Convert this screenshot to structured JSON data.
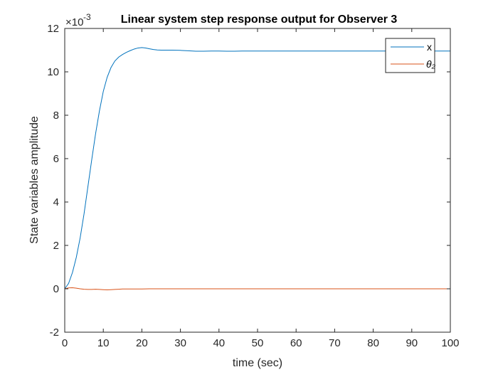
{
  "chart_data": {
    "type": "line",
    "title": "Linear system step response output for Observer 3",
    "xlabel": "time (sec)",
    "ylabel": "State variables amplitude",
    "exponent_label": "×10",
    "exponent_power": "-3",
    "xlim": [
      0,
      100
    ],
    "ylim": [
      -2,
      12
    ],
    "y_scale_note": "values are ×10^-3",
    "xticks": [
      0,
      10,
      20,
      30,
      40,
      50,
      60,
      70,
      80,
      90,
      100
    ],
    "yticks": [
      -2,
      0,
      2,
      4,
      6,
      8,
      10,
      12
    ],
    "grid": false,
    "legend_position": "top-right",
    "series": [
      {
        "name": "x",
        "color": "#0072BD",
        "x": [
          0,
          1,
          2,
          3,
          4,
          5,
          6,
          7,
          8,
          9,
          10,
          11,
          12,
          13,
          14,
          15,
          16,
          17,
          18,
          19,
          20,
          21,
          22,
          23,
          24,
          25,
          26,
          28,
          30,
          32,
          34,
          36,
          38,
          40,
          42,
          44,
          46,
          48,
          50,
          55,
          60,
          70,
          80,
          90,
          100
        ],
        "y": [
          0,
          0.25,
          0.75,
          1.45,
          2.35,
          3.45,
          4.7,
          5.95,
          7.15,
          8.2,
          9.1,
          9.75,
          10.2,
          10.5,
          10.68,
          10.8,
          10.9,
          10.98,
          11.05,
          11.1,
          11.12,
          11.1,
          11.06,
          11.03,
          11.01,
          11.0,
          11.0,
          11.0,
          10.99,
          10.97,
          10.95,
          10.95,
          10.96,
          10.96,
          10.95,
          10.95,
          10.96,
          10.96,
          10.96,
          10.96,
          10.96,
          10.96,
          10.96,
          10.96,
          10.96
        ]
      },
      {
        "name": "θ₂",
        "color": "#D95319",
        "x": [
          0,
          1,
          2,
          3,
          4,
          5,
          6,
          7,
          8,
          9,
          10,
          11,
          12,
          13,
          14,
          15,
          16,
          17,
          18,
          20,
          22,
          25,
          30,
          40,
          50,
          60,
          70,
          80,
          90,
          100
        ],
        "y": [
          0,
          0.04,
          0.05,
          0.03,
          0.0,
          -0.02,
          -0.03,
          -0.03,
          -0.02,
          -0.03,
          -0.04,
          -0.05,
          -0.04,
          -0.03,
          -0.02,
          -0.01,
          -0.01,
          -0.01,
          -0.01,
          -0.01,
          0.0,
          0.0,
          0.0,
          0.0,
          0.0,
          0.0,
          0.0,
          0.0,
          0.0,
          0.0
        ]
      }
    ]
  }
}
